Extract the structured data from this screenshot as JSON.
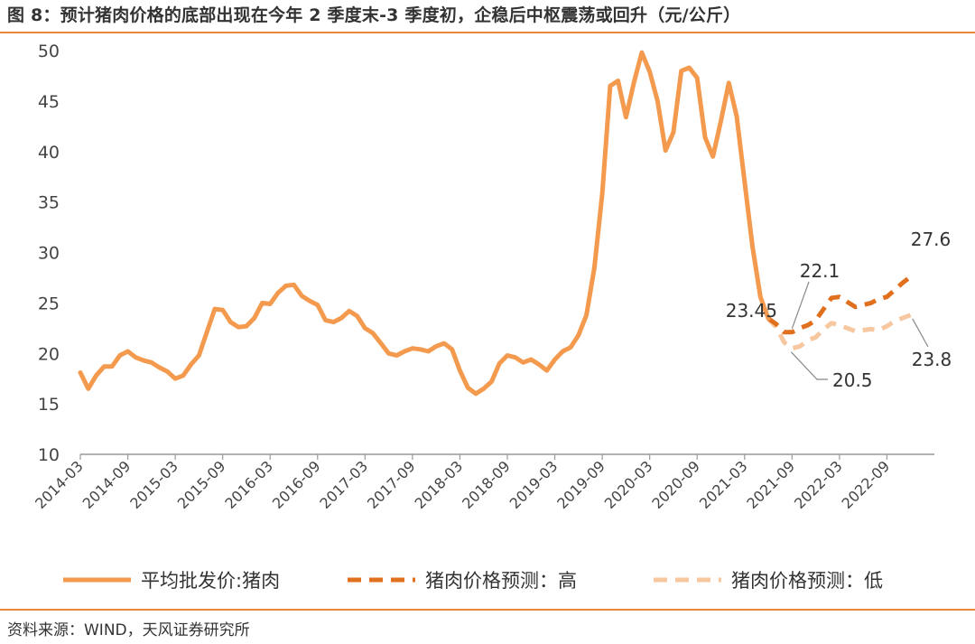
{
  "title": "图 8：预计猪肉价格的底部出现在今年 2 季度末-3 季度初，企稳后中枢震荡或回升（元/公斤）",
  "source": "资料来源：WIND，天风证券研究所",
  "colors": {
    "accent": "#e6873c",
    "actual": "#f39a4e",
    "high": "#e06f1e",
    "low": "#f7c7a0"
  },
  "chart_data": {
    "type": "line",
    "title": "图 8：预计猪肉价格的底部出现在今年 2 季度末-3 季度初，企稳后中枢震荡或回升（元/公斤）",
    "xlabel": "",
    "ylabel": "",
    "ylim": [
      10,
      50
    ],
    "yticks": [
      10,
      15,
      20,
      25,
      30,
      35,
      40,
      45,
      50
    ],
    "x_range": [
      "2014-03",
      "2023-03"
    ],
    "xtick_labels": [
      "2014-03",
      "2014-09",
      "2015-03",
      "2015-09",
      "2016-03",
      "2016-09",
      "2017-03",
      "2017-09",
      "2018-03",
      "2018-09",
      "2019-03",
      "2019-09",
      "2020-03",
      "2020-09",
      "2021-03",
      "2021-09",
      "2022-03",
      "2022-09"
    ],
    "grid": false,
    "legend_position": "bottom",
    "series": [
      {
        "name": "平均批发价:猪肉",
        "style": "solid",
        "points": [
          [
            "2014-03",
            18.1
          ],
          [
            "2014-04",
            16.5
          ],
          [
            "2014-05",
            17.8
          ],
          [
            "2014-06",
            18.7
          ],
          [
            "2014-07",
            18.7
          ],
          [
            "2014-08",
            19.8
          ],
          [
            "2014-09",
            20.2
          ],
          [
            "2014-10",
            19.6
          ],
          [
            "2014-11",
            19.3
          ],
          [
            "2014-12",
            19.1
          ],
          [
            "2015-01",
            18.6
          ],
          [
            "2015-02",
            18.2
          ],
          [
            "2015-03",
            17.5
          ],
          [
            "2015-04",
            17.8
          ],
          [
            "2015-05",
            18.9
          ],
          [
            "2015-06",
            19.8
          ],
          [
            "2015-07",
            22.1
          ],
          [
            "2015-08",
            24.4
          ],
          [
            "2015-09",
            24.3
          ],
          [
            "2015-10",
            23.1
          ],
          [
            "2015-11",
            22.6
          ],
          [
            "2015-12",
            22.7
          ],
          [
            "2016-01",
            23.5
          ],
          [
            "2016-02",
            25.0
          ],
          [
            "2016-03",
            24.9
          ],
          [
            "2016-04",
            26.0
          ],
          [
            "2016-05",
            26.7
          ],
          [
            "2016-06",
            26.8
          ],
          [
            "2016-07",
            25.7
          ],
          [
            "2016-08",
            25.2
          ],
          [
            "2016-09",
            24.8
          ],
          [
            "2016-10",
            23.3
          ],
          [
            "2016-11",
            23.1
          ],
          [
            "2016-12",
            23.5
          ],
          [
            "2017-01",
            24.2
          ],
          [
            "2017-02",
            23.7
          ],
          [
            "2017-03",
            22.5
          ],
          [
            "2017-04",
            22.0
          ],
          [
            "2017-05",
            21.0
          ],
          [
            "2017-06",
            20.0
          ],
          [
            "2017-07",
            19.8
          ],
          [
            "2017-08",
            20.2
          ],
          [
            "2017-09",
            20.5
          ],
          [
            "2017-10",
            20.4
          ],
          [
            "2017-11",
            20.2
          ],
          [
            "2017-12",
            20.7
          ],
          [
            "2018-01",
            21.0
          ],
          [
            "2018-02",
            20.4
          ],
          [
            "2018-03",
            18.3
          ],
          [
            "2018-04",
            16.6
          ],
          [
            "2018-05",
            16.0
          ],
          [
            "2018-06",
            16.5
          ],
          [
            "2018-07",
            17.2
          ],
          [
            "2018-08",
            19.0
          ],
          [
            "2018-09",
            19.8
          ],
          [
            "2018-10",
            19.6
          ],
          [
            "2018-11",
            19.1
          ],
          [
            "2018-12",
            19.4
          ],
          [
            "2019-01",
            18.9
          ],
          [
            "2019-02",
            18.3
          ],
          [
            "2019-03",
            19.4
          ],
          [
            "2019-04",
            20.2
          ],
          [
            "2019-05",
            20.6
          ],
          [
            "2019-06",
            21.8
          ],
          [
            "2019-07",
            23.8
          ],
          [
            "2019-08",
            28.5
          ],
          [
            "2019-09",
            35.8
          ],
          [
            "2019-10",
            46.5
          ],
          [
            "2019-11",
            47.0
          ],
          [
            "2019-12",
            43.4
          ],
          [
            "2020-01",
            46.8
          ],
          [
            "2020-02",
            49.8
          ],
          [
            "2020-03",
            47.9
          ],
          [
            "2020-04",
            45.0
          ],
          [
            "2020-05",
            40.1
          ],
          [
            "2020-06",
            41.9
          ],
          [
            "2020-07",
            48.0
          ],
          [
            "2020-08",
            48.3
          ],
          [
            "2020-09",
            47.3
          ],
          [
            "2020-10",
            41.4
          ],
          [
            "2020-11",
            39.5
          ],
          [
            "2020-12",
            43.0
          ],
          [
            "2021-01",
            46.8
          ],
          [
            "2021-02",
            43.5
          ],
          [
            "2021-03",
            37.0
          ],
          [
            "2021-04",
            30.6
          ],
          [
            "2021-05",
            25.6
          ],
          [
            "2021-06",
            23.45
          ]
        ]
      },
      {
        "name": "猪肉价格预测：高",
        "style": "dashed",
        "points": [
          [
            "2021-06",
            23.45
          ],
          [
            "2021-07",
            22.9
          ],
          [
            "2021-08",
            22.1
          ],
          [
            "2021-09",
            22.1
          ],
          [
            "2021-10",
            22.5
          ],
          [
            "2021-11",
            22.8
          ],
          [
            "2021-12",
            23.3
          ],
          [
            "2022-01",
            24.4
          ],
          [
            "2022-02",
            25.5
          ],
          [
            "2022-03",
            25.6
          ],
          [
            "2022-04",
            25.1
          ],
          [
            "2022-05",
            24.6
          ],
          [
            "2022-06",
            24.8
          ],
          [
            "2022-07",
            25.0
          ],
          [
            "2022-08",
            25.4
          ],
          [
            "2022-09",
            25.6
          ],
          [
            "2022-10",
            26.3
          ],
          [
            "2022-11",
            27.0
          ],
          [
            "2022-12",
            27.6
          ]
        ]
      },
      {
        "name": "猪肉价格预测：低",
        "style": "dashed",
        "points": [
          [
            "2021-06",
            23.45
          ],
          [
            "2021-07",
            22.6
          ],
          [
            "2021-08",
            21.1
          ],
          [
            "2021-09",
            20.5
          ],
          [
            "2021-10",
            20.7
          ],
          [
            "2021-11",
            21.3
          ],
          [
            "2021-12",
            21.6
          ],
          [
            "2022-01",
            22.4
          ],
          [
            "2022-02",
            23.0
          ],
          [
            "2022-03",
            22.8
          ],
          [
            "2022-04",
            22.5
          ],
          [
            "2022-05",
            22.2
          ],
          [
            "2022-06",
            22.3
          ],
          [
            "2022-07",
            22.4
          ],
          [
            "2022-08",
            22.3
          ],
          [
            "2022-09",
            22.7
          ],
          [
            "2022-10",
            23.2
          ],
          [
            "2022-11",
            23.5
          ],
          [
            "2022-12",
            23.8
          ]
        ]
      }
    ],
    "annotations": [
      {
        "text": "23.45",
        "x": "2021-06",
        "y": 23.45
      },
      {
        "text": "22.1",
        "x": "2021-09",
        "y": 22.1
      },
      {
        "text": "20.5",
        "x": "2021-09",
        "y": 20.5
      },
      {
        "text": "27.6",
        "x": "2022-12",
        "y": 27.6
      },
      {
        "text": "23.8",
        "x": "2022-12",
        "y": 23.8
      }
    ]
  }
}
